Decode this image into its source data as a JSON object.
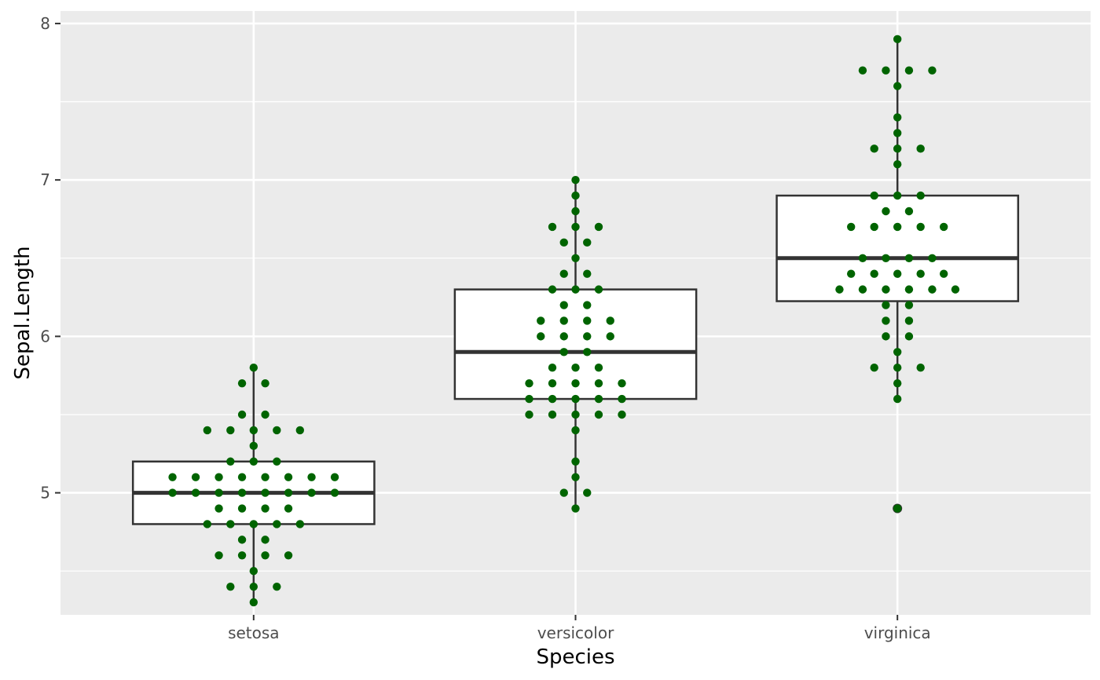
{
  "chart_data": {
    "type": "box",
    "xlabel": "Species",
    "ylabel": "Sepal.Length",
    "ylim": [
      4.22,
      8.08
    ],
    "y_ticks": [
      5,
      6,
      7,
      8
    ],
    "y_minor_ticks": [
      4.5,
      5.5,
      6.5,
      7.5
    ],
    "grid": true,
    "categories": [
      "setosa",
      "versicolor",
      "virginica"
    ],
    "boxes": [
      {
        "category": "setosa",
        "min": 4.3,
        "q1": 4.8,
        "median": 5.0,
        "q3": 5.2,
        "max": 5.8,
        "outliers": []
      },
      {
        "category": "versicolor",
        "min": 4.9,
        "q1": 5.6,
        "median": 5.9,
        "q3": 6.3,
        "max": 7.0,
        "outliers": []
      },
      {
        "category": "virginica",
        "min": 5.6,
        "q1": 6.225,
        "median": 6.5,
        "q3": 6.9,
        "max": 7.9,
        "outliers": [
          4.9
        ]
      }
    ],
    "points": [
      {
        "category": "setosa",
        "values": [
          5.1,
          4.9,
          4.7,
          4.6,
          5.0,
          5.4,
          4.6,
          5.0,
          4.4,
          4.9,
          5.4,
          4.8,
          4.8,
          4.3,
          5.8,
          5.7,
          5.4,
          5.1,
          5.7,
          5.1,
          5.4,
          5.1,
          4.6,
          5.1,
          4.8,
          5.0,
          5.0,
          5.2,
          5.2,
          4.7,
          4.8,
          5.4,
          5.2,
          5.5,
          4.9,
          5.0,
          5.5,
          4.9,
          4.4,
          5.1,
          5.0,
          4.5,
          4.4,
          5.0,
          5.1,
          4.8,
          5.1,
          4.6,
          5.3,
          5.0
        ]
      },
      {
        "category": "versicolor",
        "values": [
          7.0,
          6.4,
          6.9,
          5.5,
          6.5,
          5.7,
          6.3,
          4.9,
          6.6,
          5.2,
          5.0,
          5.9,
          6.0,
          6.1,
          5.6,
          6.7,
          5.6,
          5.8,
          6.2,
          5.6,
          5.9,
          6.1,
          6.3,
          6.1,
          6.4,
          6.6,
          6.8,
          6.7,
          6.0,
          5.7,
          5.5,
          5.5,
          5.8,
          6.0,
          5.4,
          6.0,
          6.7,
          6.3,
          5.6,
          5.5,
          5.5,
          6.1,
          5.8,
          5.0,
          5.6,
          5.7,
          5.7,
          6.2,
          5.1,
          5.7
        ]
      },
      {
        "category": "virginica",
        "values": [
          6.3,
          5.8,
          7.1,
          6.3,
          6.5,
          7.6,
          4.9,
          7.3,
          6.7,
          7.2,
          6.5,
          6.4,
          6.8,
          5.7,
          5.8,
          6.4,
          6.5,
          7.7,
          7.7,
          6.0,
          6.9,
          5.6,
          7.7,
          6.3,
          6.7,
          7.2,
          6.2,
          6.1,
          6.4,
          7.2,
          7.4,
          7.9,
          6.4,
          6.3,
          6.1,
          7.7,
          6.3,
          6.4,
          6.0,
          6.9,
          6.7,
          6.9,
          5.8,
          6.8,
          6.7,
          6.7,
          6.3,
          6.5,
          6.2,
          5.9
        ]
      }
    ],
    "point_color": "#006400",
    "panel_background": "#ebebeb",
    "grid_color": "#ffffff",
    "box_fill": "#ffffff",
    "box_stroke": "#333333"
  }
}
